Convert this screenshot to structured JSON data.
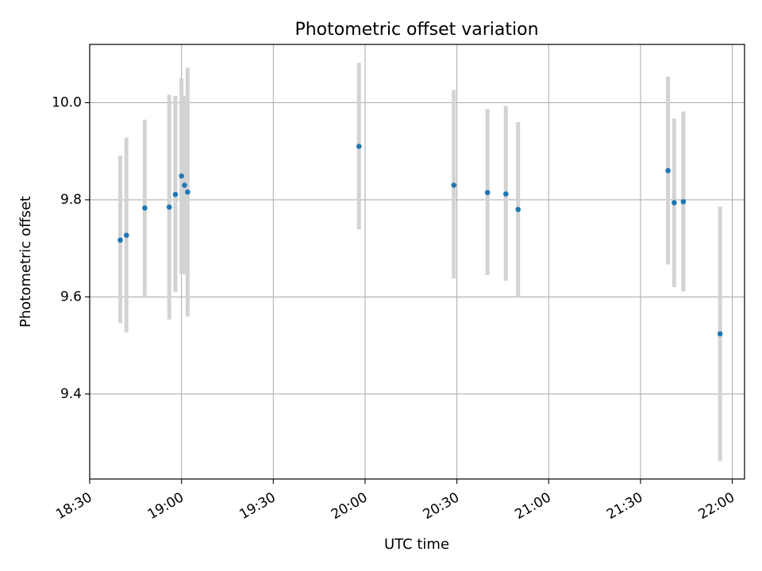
{
  "chart_data": {
    "type": "scatter",
    "title": "Photometric offset variation",
    "xlabel": "UTC time",
    "ylabel": "Photometric offset",
    "x_ticks": [
      "18:30",
      "19:00",
      "19:30",
      "20:00",
      "20:30",
      "21:00",
      "21:30",
      "22:00"
    ],
    "y_ticks": [
      "9.4",
      "9.6",
      "9.8",
      "10.0"
    ],
    "xlim": [
      "18:30",
      "22:04"
    ],
    "ylim": [
      9.225,
      10.12
    ],
    "grid": true,
    "colors": {
      "point": "#1f77b4",
      "errorbar": "#d3d3d3",
      "grid": "#b0b0b0"
    },
    "points": [
      {
        "x": "18:40",
        "y": 9.717,
        "err_low": 9.546,
        "err_high": 9.891
      },
      {
        "x": "18:42",
        "y": 9.727,
        "err_low": 9.527,
        "err_high": 9.928
      },
      {
        "x": "18:48",
        "y": 9.783,
        "err_low": 9.602,
        "err_high": 9.965
      },
      {
        "x": "18:56",
        "y": 9.785,
        "err_low": 9.553,
        "err_high": 10.016
      },
      {
        "x": "18:58",
        "y": 9.811,
        "err_low": 9.61,
        "err_high": 10.014
      },
      {
        "x": "19:00",
        "y": 9.849,
        "err_low": 9.647,
        "err_high": 10.05
      },
      {
        "x": "19:01",
        "y": 9.83,
        "err_low": 9.647,
        "err_high": 10.014
      },
      {
        "x": "19:02",
        "y": 9.816,
        "err_low": 9.56,
        "err_high": 10.072
      },
      {
        "x": "19:58",
        "y": 9.91,
        "err_low": 9.739,
        "err_high": 10.082
      },
      {
        "x": "20:29",
        "y": 9.83,
        "err_low": 9.638,
        "err_high": 10.026
      },
      {
        "x": "20:40",
        "y": 9.815,
        "err_low": 9.645,
        "err_high": 9.987
      },
      {
        "x": "20:46",
        "y": 9.812,
        "err_low": 9.633,
        "err_high": 9.993
      },
      {
        "x": "20:50",
        "y": 9.78,
        "err_low": 9.6,
        "err_high": 9.96
      },
      {
        "x": "21:39",
        "y": 9.86,
        "err_low": 9.667,
        "err_high": 10.054
      },
      {
        "x": "21:41",
        "y": 9.794,
        "err_low": 9.62,
        "err_high": 9.967
      },
      {
        "x": "21:44",
        "y": 9.796,
        "err_low": 9.611,
        "err_high": 9.982
      },
      {
        "x": "21:56",
        "y": 9.524,
        "err_low": 9.262,
        "err_high": 9.786
      }
    ]
  }
}
